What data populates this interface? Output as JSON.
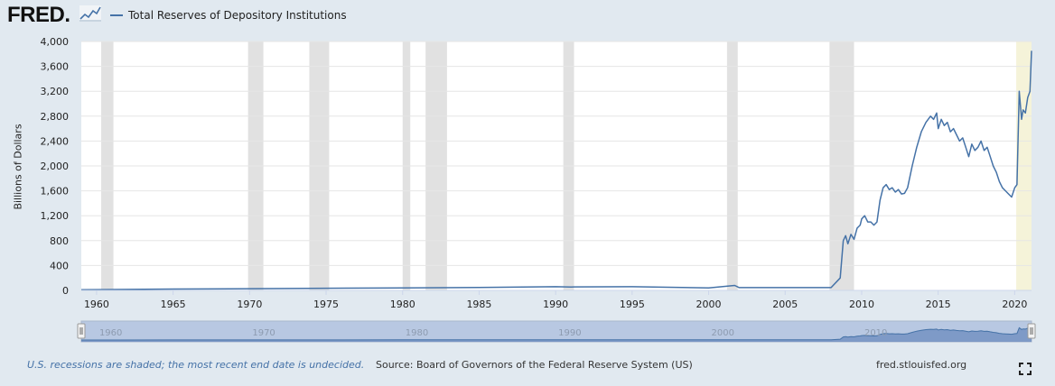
{
  "header": {
    "logo_text": "FRED",
    "legend_label": "Total Reserves of Depository Institutions",
    "series_color": "#4572a7"
  },
  "footer": {
    "note": "U.S. recessions are shaded; the most recent end date is undecided.",
    "source": "Source: Board of Governors of the Federal Reserve System (US)",
    "site": "fred.stlouisfed.org"
  },
  "chart_data": {
    "type": "line",
    "ylabel": "Billions of Dollars",
    "ylim": [
      0,
      4000
    ],
    "yticks": [
      0,
      400,
      800,
      1200,
      1600,
      2000,
      2400,
      2800,
      3200,
      3600,
      4000
    ],
    "ytick_labels": [
      "0",
      "400",
      "800",
      "1,200",
      "1,600",
      "2,000",
      "2,400",
      "2,800",
      "3,200",
      "3,600",
      "4,000"
    ],
    "xlim": [
      1959.0,
      2021.1
    ],
    "xticks": [
      1960,
      1965,
      1970,
      1975,
      1980,
      1985,
      1990,
      1995,
      2000,
      2005,
      2010,
      2015,
      2020
    ],
    "navigator_ticks": [
      1960,
      1970,
      1980,
      1990,
      2000,
      2010
    ],
    "grid": true,
    "recessions": [
      [
        1960.3,
        1961.1
      ],
      [
        1969.9,
        1970.9
      ],
      [
        1973.9,
        1975.2
      ],
      [
        1980.0,
        1980.5
      ],
      [
        1981.5,
        1982.9
      ],
      [
        1990.5,
        1991.2
      ],
      [
        2001.2,
        2001.9
      ],
      [
        2007.9,
        2009.5
      ]
    ],
    "recession_undecided": [
      2020.1,
      2021.1
    ],
    "series": [
      {
        "name": "Total Reserves of Depository Institutions",
        "x": [
          1959.0,
          1965.0,
          1970.0,
          1975.0,
          1980.0,
          1985.0,
          1990.0,
          1991.0,
          1995.0,
          2000.0,
          2001.7,
          2002.0,
          2005.0,
          2008.0,
          2008.6,
          2008.8,
          2008.95,
          2009.1,
          2009.3,
          2009.5,
          2009.7,
          2009.9,
          2010.0,
          2010.2,
          2010.4,
          2010.6,
          2010.8,
          2011.0,
          2011.2,
          2011.4,
          2011.6,
          2011.8,
          2012.0,
          2012.2,
          2012.4,
          2012.6,
          2012.8,
          2013.0,
          2013.3,
          2013.6,
          2013.9,
          2014.2,
          2014.5,
          2014.7,
          2014.9,
          2015.0,
          2015.2,
          2015.4,
          2015.6,
          2015.8,
          2016.0,
          2016.2,
          2016.4,
          2016.6,
          2016.8,
          2017.0,
          2017.2,
          2017.4,
          2017.6,
          2017.8,
          2018.0,
          2018.2,
          2018.4,
          2018.6,
          2018.8,
          2019.0,
          2019.2,
          2019.4,
          2019.6,
          2019.8,
          2020.0,
          2020.15,
          2020.3,
          2020.45,
          2020.55,
          2020.7,
          2020.85,
          2021.0,
          2021.1
        ],
        "values": [
          11,
          22,
          28,
          35,
          40,
          48,
          60,
          55,
          60,
          40,
          80,
          45,
          45,
          45,
          200,
          800,
          880,
          750,
          900,
          820,
          1000,
          1050,
          1150,
          1200,
          1100,
          1100,
          1050,
          1100,
          1450,
          1650,
          1700,
          1620,
          1650,
          1580,
          1620,
          1550,
          1560,
          1650,
          2000,
          2300,
          2550,
          2700,
          2800,
          2750,
          2850,
          2600,
          2750,
          2650,
          2700,
          2550,
          2600,
          2500,
          2400,
          2450,
          2300,
          2150,
          2350,
          2250,
          2300,
          2400,
          2250,
          2300,
          2150,
          2000,
          1900,
          1750,
          1650,
          1600,
          1550,
          1500,
          1650,
          1700,
          3200,
          2750,
          2900,
          2850,
          3100,
          3200,
          3850
        ]
      }
    ]
  }
}
